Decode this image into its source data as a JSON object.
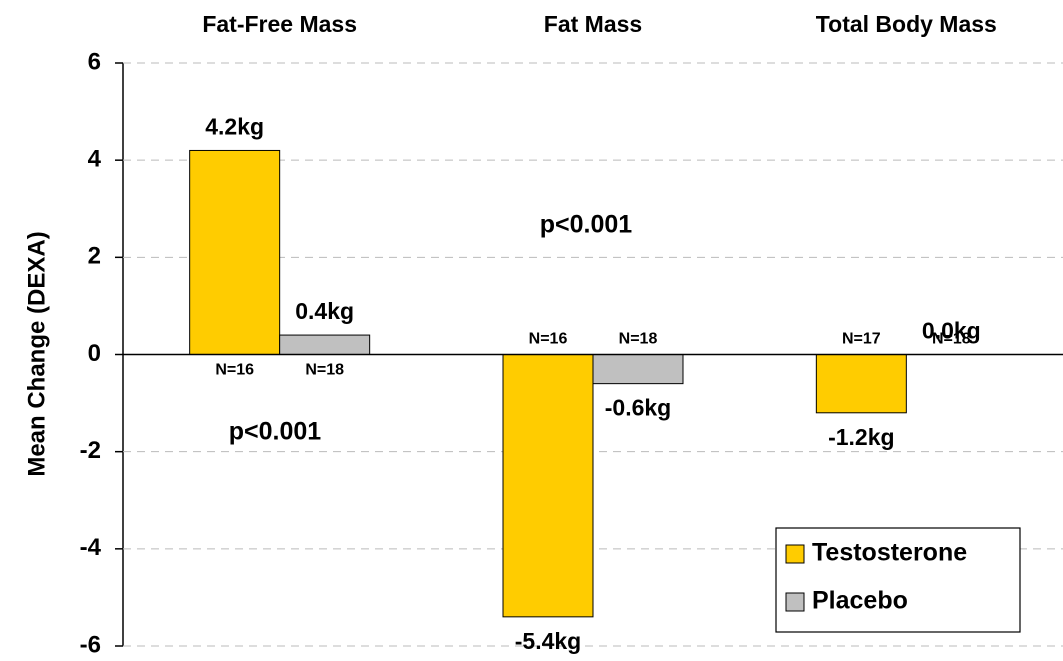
{
  "chart_data": {
    "type": "bar",
    "y_label": "Mean Change (DEXA)",
    "categories": [
      "Fat-Free Mass",
      "Fat Mass",
      "Total Body Mass"
    ],
    "series": [
      {
        "name": "Testosterone",
        "color": "#ffcc00",
        "values": [
          4.2,
          -5.4,
          -1.2
        ],
        "value_labels": [
          "4.2kg",
          "-5.4kg",
          "-1.2kg"
        ],
        "n_labels": [
          "N=16",
          "N=16",
          "N=17"
        ]
      },
      {
        "name": "Placebo",
        "color": "#c0c0c0",
        "values": [
          0.4,
          -0.6,
          0.0
        ],
        "value_labels": [
          "0.4kg",
          "-0.6kg",
          "0.0kg"
        ],
        "n_labels": [
          "N=18",
          "N=18",
          "N=18"
        ]
      }
    ],
    "annotations": [
      "p<0.001",
      "p<0.001"
    ],
    "ylim": [
      -6,
      6
    ],
    "yticks": [
      -6,
      -4,
      -2,
      0,
      2,
      4,
      6
    ],
    "grid": true,
    "legend": "lower right"
  }
}
